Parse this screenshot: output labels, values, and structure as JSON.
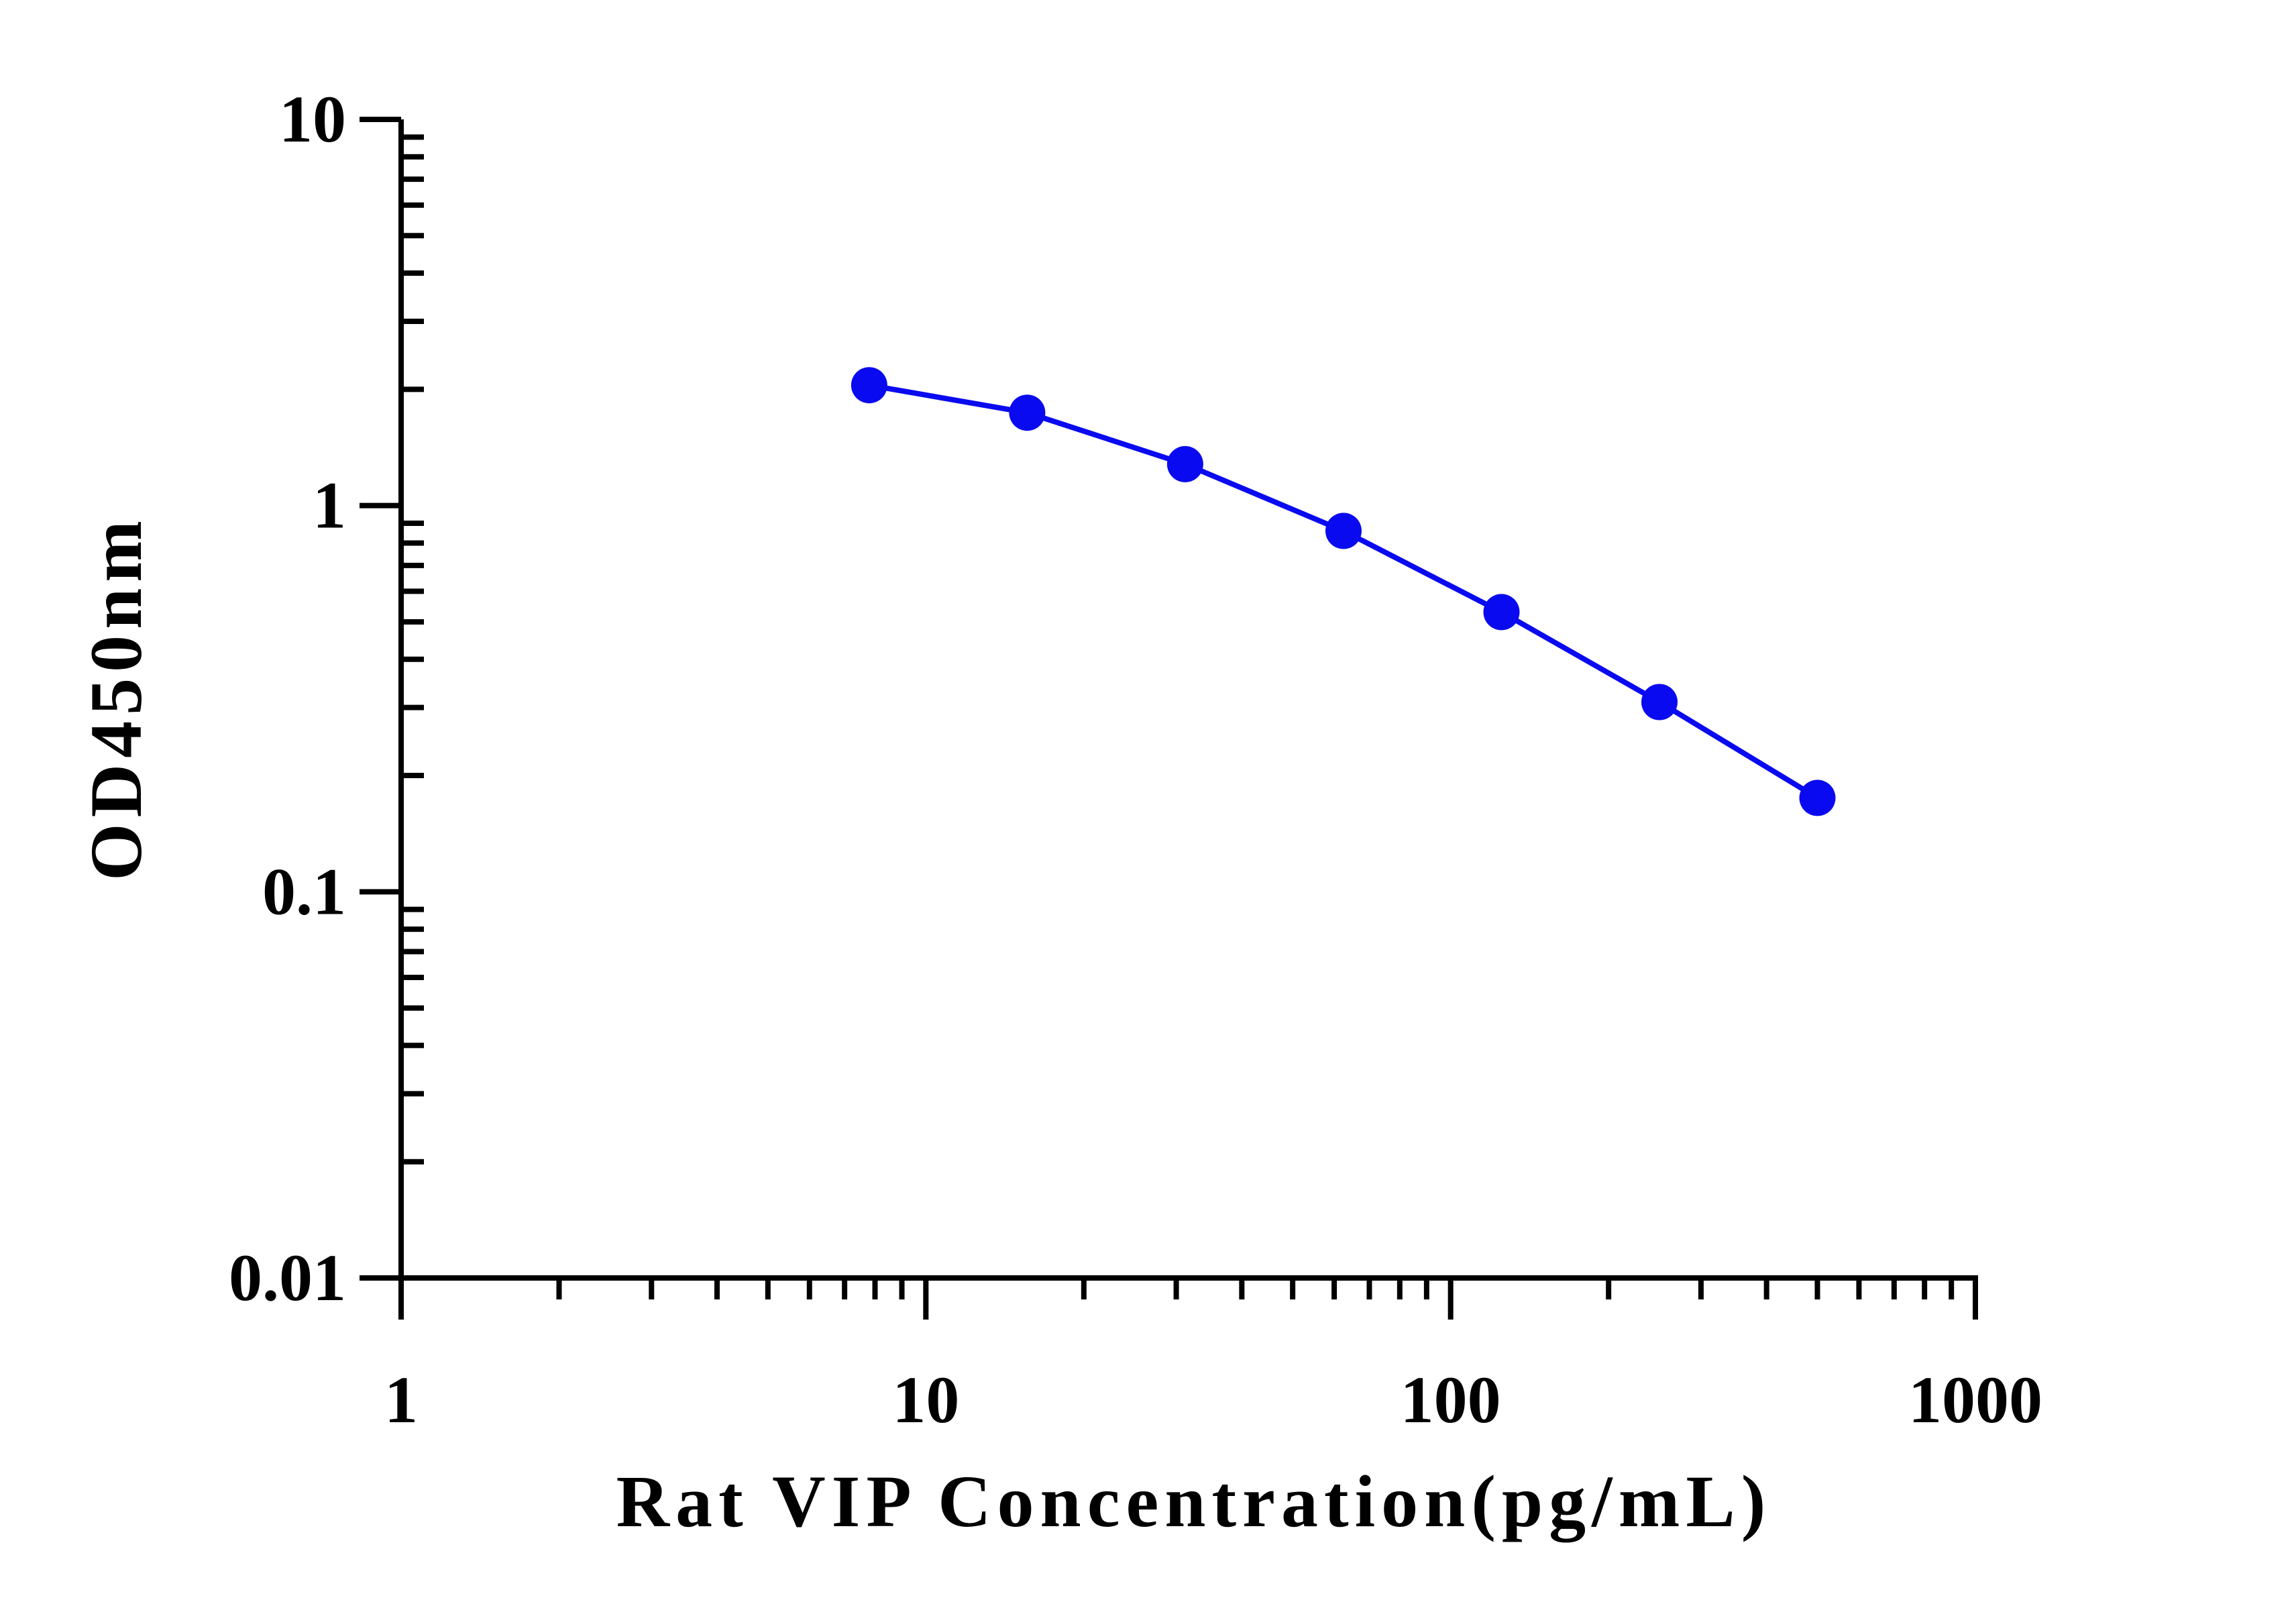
{
  "chart_data": {
    "type": "line",
    "xlabel": "Rat VIP Concentration(pg/mL)",
    "ylabel": "OD450nm",
    "xscale": "log",
    "yscale": "log",
    "xlim": [
      1,
      1000
    ],
    "ylim": [
      0.01,
      10
    ],
    "x_ticks": [
      "1",
      "10",
      "100",
      "1000"
    ],
    "y_ticks": [
      "0.01",
      "0.1",
      "1",
      "10"
    ],
    "grid": false,
    "legend": "none",
    "series": [
      {
        "color": "#0a0af0",
        "marker": "circle",
        "x": [
          7.8,
          15.6,
          31.2,
          62.5,
          125,
          250,
          500
        ],
        "y": [
          2.05,
          1.74,
          1.28,
          0.86,
          0.53,
          0.31,
          0.175
        ]
      }
    ]
  }
}
